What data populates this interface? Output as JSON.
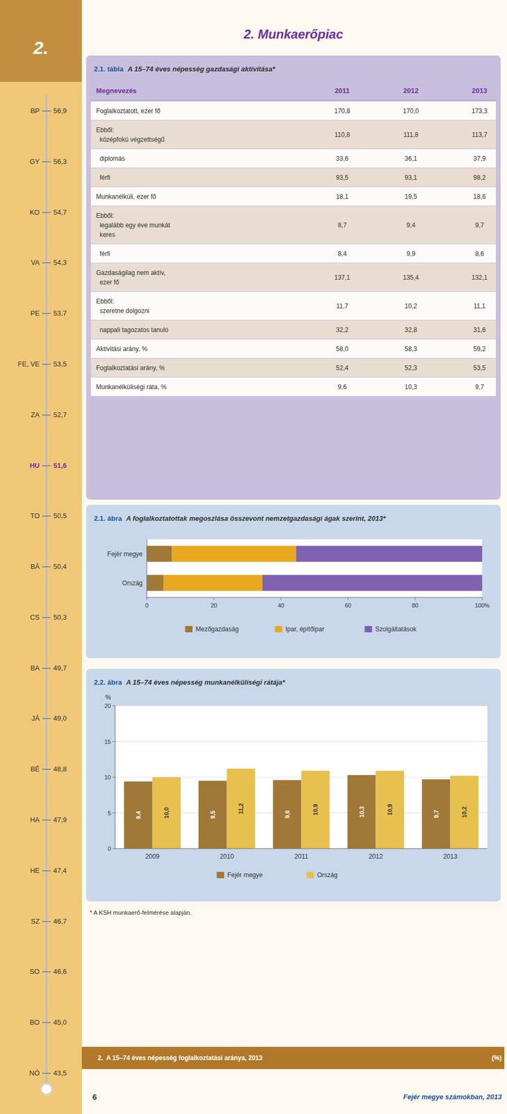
{
  "page_title": "2. Munkaerőpiac",
  "section_number": "2.",
  "sidebar": [
    {
      "label": "BP",
      "value": "56,9",
      "highlight": false
    },
    {
      "label": "GY",
      "value": "56,3",
      "highlight": false
    },
    {
      "label": "KO",
      "value": "54,7",
      "highlight": false
    },
    {
      "label": "VA",
      "value": "54,3",
      "highlight": false
    },
    {
      "label": "PE",
      "value": "53,7",
      "highlight": false
    },
    {
      "label": "FE, VE",
      "value": "53,5",
      "highlight": false
    },
    {
      "label": "ZA",
      "value": "52,7",
      "highlight": false
    },
    {
      "label": "HU",
      "value": "51,6",
      "highlight": true
    },
    {
      "label": "TO",
      "value": "50,5",
      "highlight": false
    },
    {
      "label": "BÁ",
      "value": "50,4",
      "highlight": false
    },
    {
      "label": "CS",
      "value": "50,3",
      "highlight": false
    },
    {
      "label": "BA",
      "value": "49,7",
      "highlight": false
    },
    {
      "label": "JÁ",
      "value": "49,0",
      "highlight": false
    },
    {
      "label": "BÉ",
      "value": "48,8",
      "highlight": false
    },
    {
      "label": "HA",
      "value": "47,9",
      "highlight": false
    },
    {
      "label": "HE",
      "value": "47,4",
      "highlight": false
    },
    {
      "label": "SZ",
      "value": "46,7",
      "highlight": false
    },
    {
      "label": "SO",
      "value": "46,6",
      "highlight": false
    },
    {
      "label": "BO",
      "value": "45,0",
      "highlight": false
    },
    {
      "label": "NÓ",
      "value": "43,5",
      "highlight": false
    }
  ],
  "table": {
    "title": "2.1. tábla",
    "subtitle": "A 15–74 éves népesség gazdasági aktivitása*",
    "columns": [
      "Megnevezés",
      "2011",
      "2012",
      "2013"
    ],
    "rows": [
      {
        "label": "Foglalkoztatott, ezer fő",
        "values": [
          "170,8",
          "170,0",
          "173,3"
        ]
      },
      {
        "label": "Ebből:\n  középfokú végzettségű",
        "values": [
          "110,8",
          "111,8",
          "113,7"
        ]
      },
      {
        "label": "  diplomás",
        "values": [
          "33,6",
          "36,1",
          "37,9"
        ]
      },
      {
        "label": "  férfi",
        "values": [
          "93,5",
          "93,1",
          "98,2"
        ]
      },
      {
        "label": "Munkanélküli, ezer fő",
        "values": [
          "18,1",
          "19,5",
          "18,6"
        ]
      },
      {
        "label": "Ebből:\n  legalább egy éve munkát\n  keres",
        "values": [
          "8,7",
          "9,4",
          "9,7"
        ]
      },
      {
        "label": "  férfi",
        "values": [
          "8,4",
          "9,9",
          "8,6"
        ]
      },
      {
        "label": "Gazdaságilag nem aktív,\n  ezer fő",
        "values": [
          "137,1",
          "135,4",
          "132,1"
        ]
      },
      {
        "label": "Ebből:\n  szeretne dolgozni",
        "values": [
          "11,7",
          "10,2",
          "11,1"
        ]
      },
      {
        "label": "  nappali tagozatos tanuló",
        "values": [
          "32,2",
          "32,8",
          "31,6"
        ]
      },
      {
        "label": "Aktivitási arány, %",
        "values": [
          "58,0",
          "58,3",
          "59,2"
        ]
      },
      {
        "label": "Foglalkoztatási arány, %",
        "values": [
          "52,4",
          "52,3",
          "53,5"
        ]
      },
      {
        "label": "Munkanélküliségi ráta, %",
        "values": [
          "9,6",
          "10,3",
          "9,7"
        ]
      }
    ]
  },
  "chart_data": [
    {
      "type": "bar",
      "title": "2.1. ábra",
      "subtitle": "A foglalkoztatottak megoszlása összevont nemzetgazdasági ágak szerint, 2013*",
      "orientation": "horizontal",
      "stacked": true,
      "categories": [
        "Fejér megye",
        "Ország"
      ],
      "series": [
        {
          "name": "Mezőgazdaság",
          "color": "#a07838",
          "values": [
            7.5,
            5.0
          ]
        },
        {
          "name": "Ipar, építőipar",
          "color": "#e8a820",
          "values": [
            37.0,
            29.5
          ]
        },
        {
          "name": "Szolgáltatások",
          "color": "#8060b0",
          "values": [
            55.5,
            65.5
          ]
        }
      ],
      "xlim": [
        0,
        100
      ],
      "xticks": [
        0,
        20,
        40,
        60,
        80,
        {
          "value": 100,
          "label": "100%"
        }
      ],
      "grid": false,
      "legend": "bottom"
    },
    {
      "type": "bar",
      "title": "2.2. ábra",
      "subtitle": "A 15–74 éves népesség munkanélküliségi rátája*",
      "y_label": "%",
      "categories": [
        "2009",
        "2010",
        "2011",
        "2012",
        "2013"
      ],
      "series": [
        {
          "name": "Fejér megye",
          "color": "#a07838",
          "values": [
            9.4,
            9.5,
            9.6,
            10.3,
            9.7
          ],
          "value_labels": [
            "9,4",
            "9,5",
            "9,6",
            "10,3",
            "9,7"
          ]
        },
        {
          "name": "Ország",
          "color": "#e8c050",
          "values": [
            10.0,
            11.2,
            10.9,
            10.9,
            10.2
          ],
          "value_labels": [
            "10,0",
            "11,2",
            "10,9",
            "10,9",
            "10,2"
          ]
        }
      ],
      "ylim": [
        0,
        20
      ],
      "yticks": [
        0,
        5,
        10,
        15,
        20
      ],
      "grid": true,
      "data_labels": true,
      "legend": "bottom"
    }
  ],
  "footnote": "* A KSH munkaerő-felmérése alapján.",
  "banner": {
    "text": "2.  A 15–74 éves népesség foglalkoztatási aránya, 2013",
    "unit": "(%)"
  },
  "footer": {
    "page_number": "6",
    "publication": "Fejér megye számokban, 2013"
  }
}
